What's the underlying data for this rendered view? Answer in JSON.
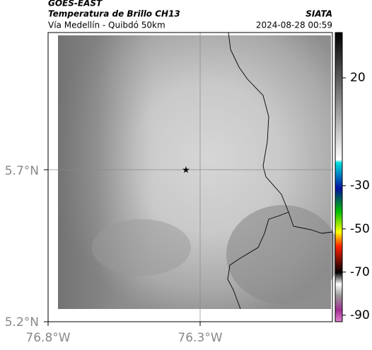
{
  "header": {
    "satellite": "GOES-EAST",
    "product": "Temperatura de Brillo CH13",
    "source": "SIATA",
    "location": "Vía Medellín - Quibdó 50km",
    "datetime": "2024-08-28 00:59"
  },
  "map": {
    "lat_ticks": [
      "5.7°N",
      "5.2°N"
    ],
    "lon_ticks": [
      "76.8°W",
      "76.3°W"
    ]
  },
  "colorbar": {
    "range": [
      41,
      -93
    ],
    "ticks": [
      20,
      -30,
      -50,
      -70,
      -90
    ]
  }
}
